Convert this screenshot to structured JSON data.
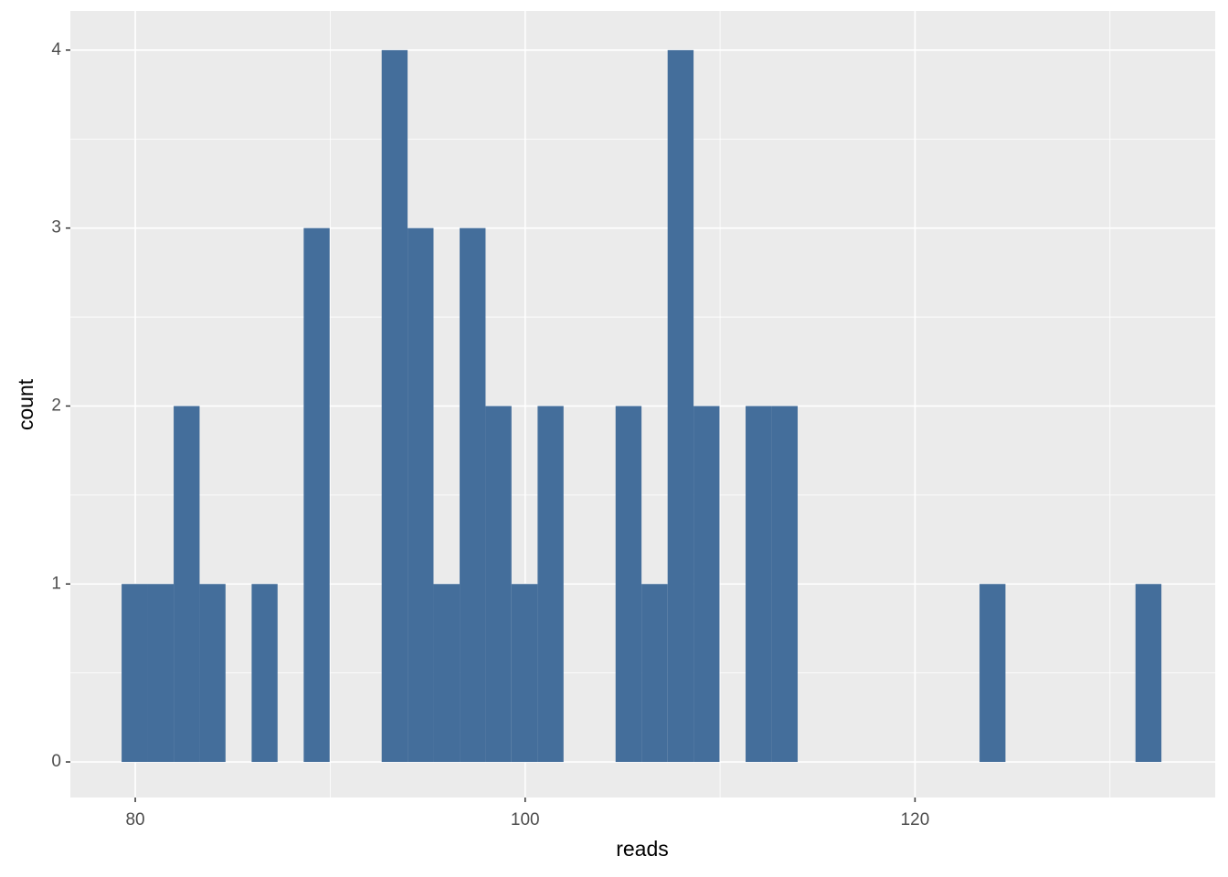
{
  "chart_data": {
    "type": "histogram",
    "x_label": "reads",
    "y_label": "count",
    "bins": [
      79.3,
      80.63,
      81.97,
      83.3,
      84.63,
      85.97,
      87.3,
      88.64,
      89.97,
      91.3,
      92.64,
      93.97,
      95.3,
      96.64,
      97.97,
      99.3,
      100.64,
      101.97,
      103.31,
      104.64,
      105.97,
      107.31,
      108.64,
      109.97,
      111.31,
      112.64,
      113.98,
      115.31,
      116.64,
      117.98,
      119.31,
      120.64,
      121.98,
      123.31,
      124.64,
      125.98,
      127.31,
      128.65,
      129.98,
      131.31,
      132.64
    ],
    "counts": [
      1,
      1,
      2,
      1,
      0,
      1,
      0,
      3,
      0,
      0,
      4,
      3,
      1,
      3,
      2,
      1,
      2,
      0,
      0,
      2,
      1,
      4,
      2,
      0,
      2,
      2,
      0,
      0,
      0,
      0,
      0,
      0,
      0,
      1,
      0,
      0,
      0,
      0,
      0,
      1
    ],
    "color": "#446e9b",
    "xlim": [
      76.67,
      135.4
    ],
    "xticks": [
      80,
      100,
      120
    ],
    "ylim": [
      -0.2,
      4.22
    ],
    "yticks": [
      0,
      1,
      2,
      3,
      4
    ],
    "grid": true
  }
}
